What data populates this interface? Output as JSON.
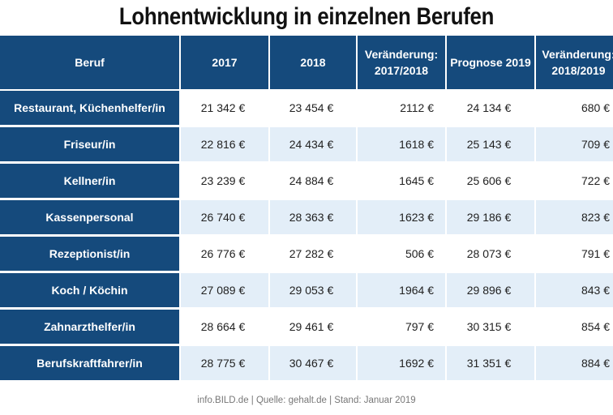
{
  "title": "Lohnentwicklung in einzelnen Berufen",
  "table": {
    "headers": [
      "Beruf",
      "2017",
      "2018",
      "Veränderung: 2017/2018",
      "Prognose 2019",
      "Veränderung: 2018/2019"
    ],
    "rows": [
      [
        "Restaurant, Küchenhelfer/in",
        "21 342 €",
        "23 454 €",
        "2112 €",
        "24 134 €",
        "680 €"
      ],
      [
        "Friseur/in",
        "22 816 €",
        "24 434 €",
        "1618 €",
        "25 143 €",
        "709 €"
      ],
      [
        "Kellner/in",
        "23 239 €",
        "24 884 €",
        "1645 €",
        "25 606 €",
        "722 €"
      ],
      [
        "Kassenpersonal",
        "26 740 €",
        "28 363 €",
        "1623 €",
        "29 186 €",
        "823 €"
      ],
      [
        "Rezeptionist/in",
        "26 776 €",
        "27 282 €",
        "506 €",
        "28 073 €",
        "791 €"
      ],
      [
        "Koch / Köchin",
        "27 089 €",
        "29 053 €",
        "1964 €",
        "29 896 €",
        "843 €"
      ],
      [
        "Zahnarzthelfer/in",
        "28 664 €",
        "29 461 €",
        "797 €",
        "30 315 €",
        "854 €"
      ],
      [
        "Berufskraftfahrer/in",
        "28 775 €",
        "30 467 €",
        "1692 €",
        "31 351 €",
        "884 €"
      ]
    ]
  },
  "footer": "info.BILD.de | Quelle: gehalt.de | Stand: Januar 2019",
  "colors": {
    "header_bg": "#154a7c",
    "row_alt_bg": "#e3eef8",
    "text": "#222222"
  }
}
